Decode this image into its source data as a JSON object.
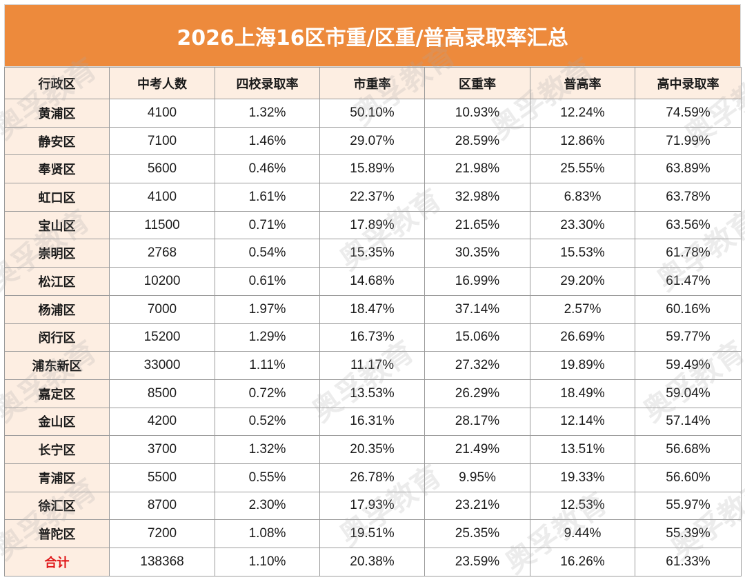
{
  "title": "2026上海16区市重/区重/普高录取率汇总",
  "headers": [
    "行政区",
    "中考人数",
    "四校录取率",
    "市重率",
    "区重率",
    "普高率",
    "高中录取率"
  ],
  "rows": [
    [
      "黄浦区",
      "4100",
      "1.32%",
      "50.10%",
      "10.93%",
      "12.24%",
      "74.59%"
    ],
    [
      "静安区",
      "7100",
      "1.46%",
      "29.07%",
      "28.59%",
      "12.86%",
      "71.99%"
    ],
    [
      "奉贤区",
      "5600",
      "0.46%",
      "15.89%",
      "21.98%",
      "25.55%",
      "63.89%"
    ],
    [
      "虹口区",
      "4100",
      "1.61%",
      "22.37%",
      "32.98%",
      "6.83%",
      "63.78%"
    ],
    [
      "宝山区",
      "11500",
      "0.71%",
      "17.89%",
      "21.65%",
      "23.30%",
      "63.56%"
    ],
    [
      "崇明区",
      "2768",
      "0.54%",
      "15.35%",
      "30.35%",
      "15.53%",
      "61.78%"
    ],
    [
      "松江区",
      "10200",
      "0.61%",
      "14.68%",
      "16.99%",
      "29.20%",
      "61.47%"
    ],
    [
      "杨浦区",
      "7000",
      "1.97%",
      "18.47%",
      "37.14%",
      "2.57%",
      "60.16%"
    ],
    [
      "闵行区",
      "15200",
      "1.29%",
      "16.73%",
      "15.06%",
      "26.69%",
      "59.77%"
    ],
    [
      "浦东新区",
      "33000",
      "1.11%",
      "11.17%",
      "27.32%",
      "19.89%",
      "59.49%"
    ],
    [
      "嘉定区",
      "8500",
      "0.72%",
      "13.53%",
      "26.29%",
      "18.49%",
      "59.04%"
    ],
    [
      "金山区",
      "4200",
      "0.52%",
      "16.31%",
      "28.17%",
      "12.14%",
      "57.14%"
    ],
    [
      "长宁区",
      "3700",
      "1.32%",
      "20.35%",
      "21.49%",
      "13.51%",
      "56.68%"
    ],
    [
      "青浦区",
      "5500",
      "0.55%",
      "26.78%",
      "9.95%",
      "19.33%",
      "56.60%"
    ],
    [
      "徐汇区",
      "8700",
      "2.30%",
      "17.93%",
      "23.21%",
      "12.53%",
      "55.97%"
    ],
    [
      "普陀区",
      "7200",
      "1.08%",
      "19.51%",
      "25.35%",
      "9.44%",
      "55.39%"
    ]
  ],
  "total": [
    "合计",
    "138368",
    "1.10%",
    "20.38%",
    "23.59%",
    "16.26%",
    "61.33%"
  ],
  "watermark": "奥孚教育",
  "colors": {
    "title_bg": "#ed8a3c",
    "header_bg": "#fdeee2",
    "total_label": "#e0191b"
  }
}
